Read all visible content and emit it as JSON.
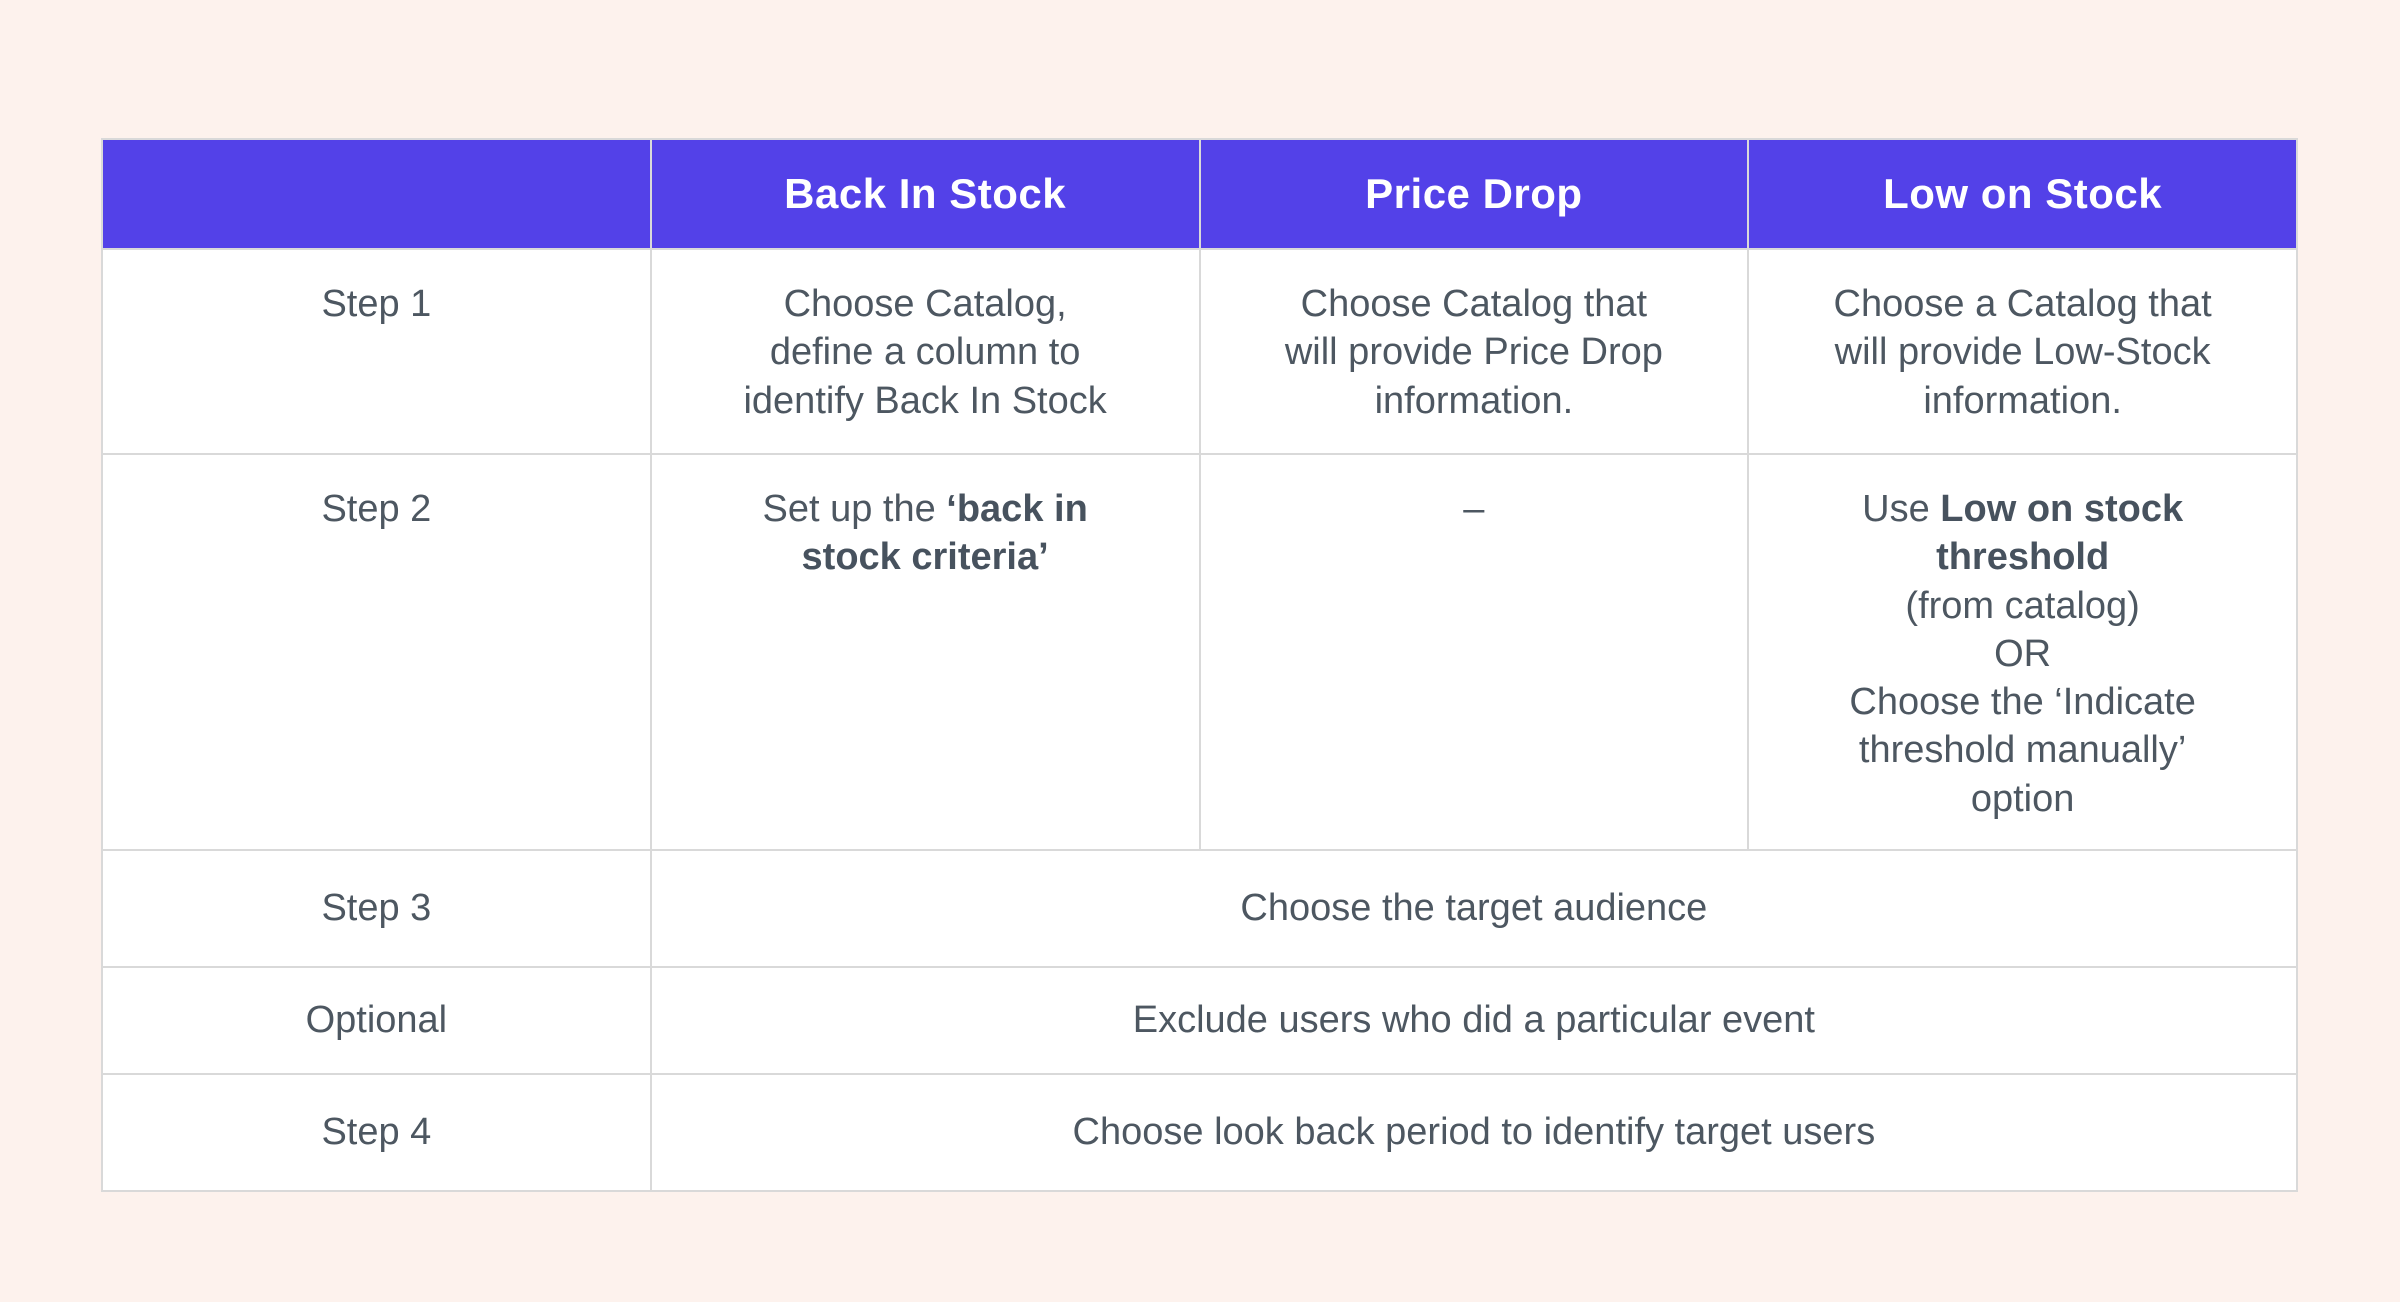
{
  "colors": {
    "page_background": "#FDF2ED",
    "header_background": "#5341E8",
    "header_text": "#FFFFFF",
    "body_text": "#4D5761",
    "grid_border": "#D9D9D9",
    "cell_background": "#FFFFFF"
  },
  "table": {
    "columns": [
      "",
      "Back In Stock",
      "Price Drop",
      "Low on Stock"
    ],
    "rows": [
      {
        "label": "Step 1",
        "cells": [
          {
            "colspan": 1,
            "segments": [
              {
                "text": "Choose Catalog,\ndefine a column to\nidentify Back In Stock",
                "bold": false
              }
            ]
          },
          {
            "colspan": 1,
            "segments": [
              {
                "text": "Choose Catalog that\nwill provide Price Drop\ninformation.",
                "bold": false
              }
            ]
          },
          {
            "colspan": 1,
            "segments": [
              {
                "text": "Choose a Catalog that\nwill provide Low-Stock\ninformation.",
                "bold": false
              }
            ]
          }
        ]
      },
      {
        "label": "Step 2",
        "cells": [
          {
            "colspan": 1,
            "segments": [
              {
                "text": "Set up the ",
                "bold": false
              },
              {
                "text": "‘back in\nstock criteria’",
                "bold": true
              }
            ]
          },
          {
            "colspan": 1,
            "segments": [
              {
                "text": "–",
                "bold": false
              }
            ]
          },
          {
            "colspan": 1,
            "segments": [
              {
                "text": "Use ",
                "bold": false
              },
              {
                "text": "Low on stock\nthreshold",
                "bold": true
              },
              {
                "text": "\n(from catalog)\nOR\nChoose the ‘Indicate\nthreshold manually’\noption",
                "bold": false
              }
            ]
          }
        ]
      },
      {
        "label": "Step 3",
        "cells": [
          {
            "colspan": 3,
            "segments": [
              {
                "text": "Choose the target audience",
                "bold": false
              }
            ]
          }
        ]
      },
      {
        "label": "Optional",
        "cells": [
          {
            "colspan": 3,
            "segments": [
              {
                "text": "Exclude users who did a particular event",
                "bold": false
              }
            ]
          }
        ]
      },
      {
        "label": "Step 4",
        "cells": [
          {
            "colspan": 3,
            "segments": [
              {
                "text": "Choose look back period to identify target users",
                "bold": false
              }
            ]
          }
        ]
      }
    ]
  }
}
